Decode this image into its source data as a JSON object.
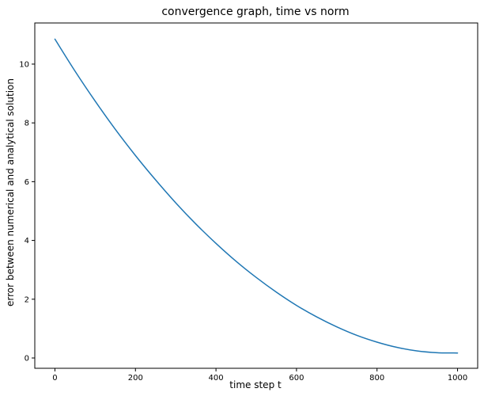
{
  "chart_data": {
    "type": "line",
    "title": "convergence graph, time vs norm",
    "xlabel": "time step t",
    "ylabel": "error between numerical and analytical solution",
    "xlim": [
      -50,
      1050
    ],
    "ylim": [
      -0.35,
      11.4
    ],
    "x_ticks": [
      0,
      200,
      400,
      600,
      800,
      1000
    ],
    "y_ticks": [
      0,
      2,
      4,
      6,
      8,
      10
    ],
    "grid": false,
    "series": [
      {
        "color": "#1f77b4",
        "x": [
          0,
          50,
          100,
          150,
          200,
          250,
          300,
          350,
          400,
          450,
          500,
          550,
          600,
          650,
          700,
          750,
          800,
          850,
          900,
          950,
          1000
        ],
        "y": [
          10.85,
          9.76,
          8.74,
          7.78,
          6.89,
          6.06,
          5.28,
          4.56,
          3.9,
          3.29,
          2.74,
          2.24,
          1.79,
          1.4,
          1.06,
          0.77,
          0.54,
          0.36,
          0.24,
          0.18,
          0.17
        ]
      }
    ]
  }
}
